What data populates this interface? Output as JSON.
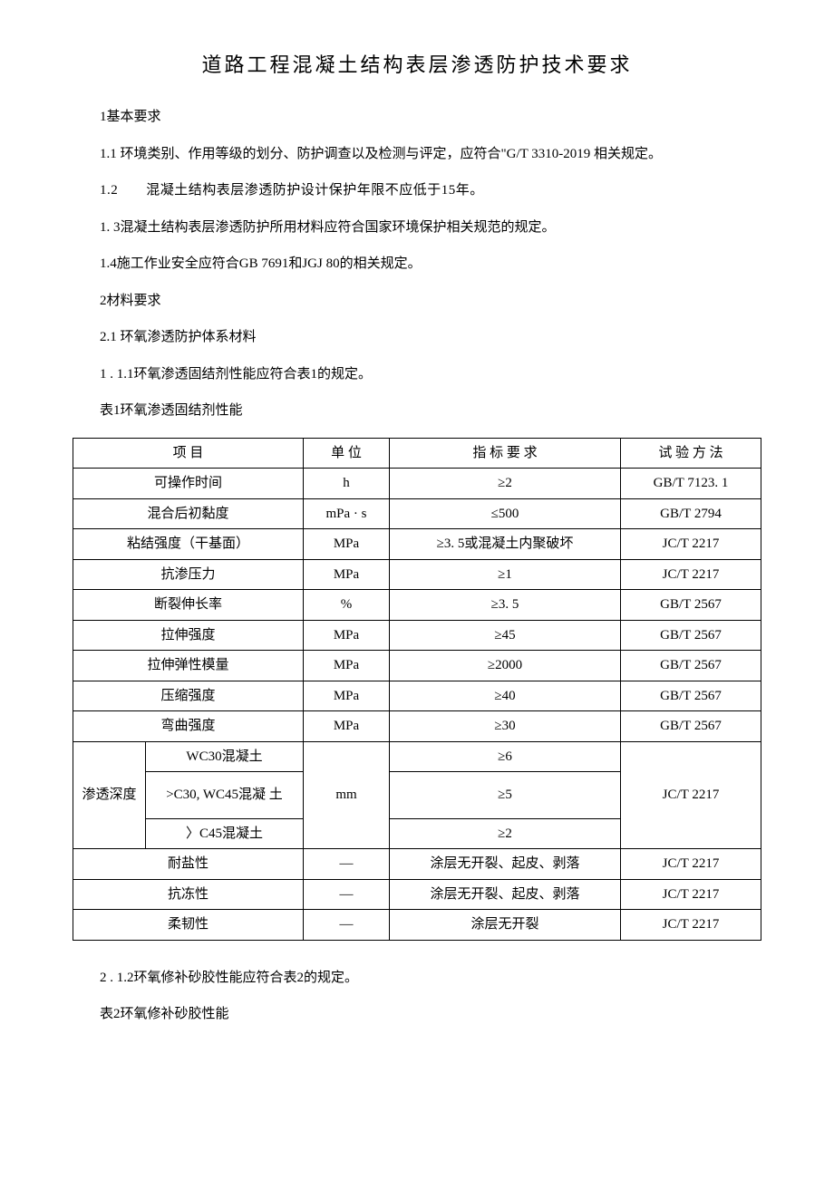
{
  "title": "道路工程混凝土结构表层渗透防护技术要求",
  "sec1_head": "1基本要求",
  "p1_1": "1.1  环境类别、作用等级的划分、防护调查以及检测与评定，应符合\"G/T 3310-2019 相关规定。",
  "p1_2": "1.2　　混凝土结构表层渗透防护设计保护年限不应低于15年。",
  "p1_3": "1. 3混凝土结构表层渗透防护所用材料应符合国家环境保护相关规范的规定。",
  "p1_4": "1.4施工作业安全应符合GB 7691和JGJ 80的相关规定。",
  "sec2_head": "2材料要求",
  "p2_1": "2.1  环氧渗透防护体系材料",
  "p2_1_1": "1 . 1.1环氧渗透固结剂性能应符合表1的规定。",
  "table1_caption": "表1环氧渗透固结剂性能",
  "p2_1_2": "2 . 1.2环氧修补砂胶性能应符合表2的规定。",
  "table2_caption": "表2环氧修补砂胶性能",
  "t1": {
    "header": {
      "c1": "项 目",
      "c2": "单 位",
      "c3": "指 标 要 求",
      "c4": "试 验 方 法"
    },
    "rows": [
      {
        "c1": "可操作时间",
        "c2": "h",
        "c3": "≥2",
        "c4": "GB/T 7123. 1"
      },
      {
        "c1": "混合后初黏度",
        "c2": "mPa · s",
        "c3": "≤500",
        "c4": "GB/T 2794"
      },
      {
        "c1": "粘结强度（干基面）",
        "c2": "MPa",
        "c3": "≥3. 5或混凝土内聚破坏",
        "c4": "JC/T 2217"
      },
      {
        "c1": "抗渗压力",
        "c2": "MPa",
        "c3": "≥1",
        "c4": "JC/T 2217"
      },
      {
        "c1": "断裂伸长率",
        "c2": "%",
        "c3": "≥3. 5",
        "c4": "GB/T 2567"
      },
      {
        "c1": "拉伸强度",
        "c2": "MPa",
        "c3": "≥45",
        "c4": "GB/T 2567"
      },
      {
        "c1": "拉伸弹性模量",
        "c2": "MPa",
        "c3": "≥2000",
        "c4": "GB/T 2567"
      },
      {
        "c1": "压缩强度",
        "c2": "MPa",
        "c3": "≥40",
        "c4": "GB/T 2567"
      },
      {
        "c1": "弯曲强度",
        "c2": "MPa",
        "c3": "≥30",
        "c4": "GB/T 2567"
      }
    ],
    "depth_label": "渗透深度",
    "depth_unit": "mm",
    "depth_method": "JC/T 2217",
    "depth_rows": [
      {
        "c1": "WC30混凝土",
        "c3": "≥6"
      },
      {
        "c1": ">C30, WC45混凝  土",
        "c3": "≥5"
      },
      {
        "c1": "〉C45混凝土",
        "c3": "≥2"
      }
    ],
    "tail": [
      {
        "c1": "耐盐性",
        "c2": "—",
        "c3": "涂层无开裂、起皮、剥落",
        "c4": "JC/T 2217"
      },
      {
        "c1": "抗冻性",
        "c2": "—",
        "c3": "涂层无开裂、起皮、剥落",
        "c4": "JC/T 2217"
      },
      {
        "c1": "柔韧性",
        "c2": "—",
        "c3": "涂层无开裂",
        "c4": "JC/T 2217"
      }
    ]
  }
}
